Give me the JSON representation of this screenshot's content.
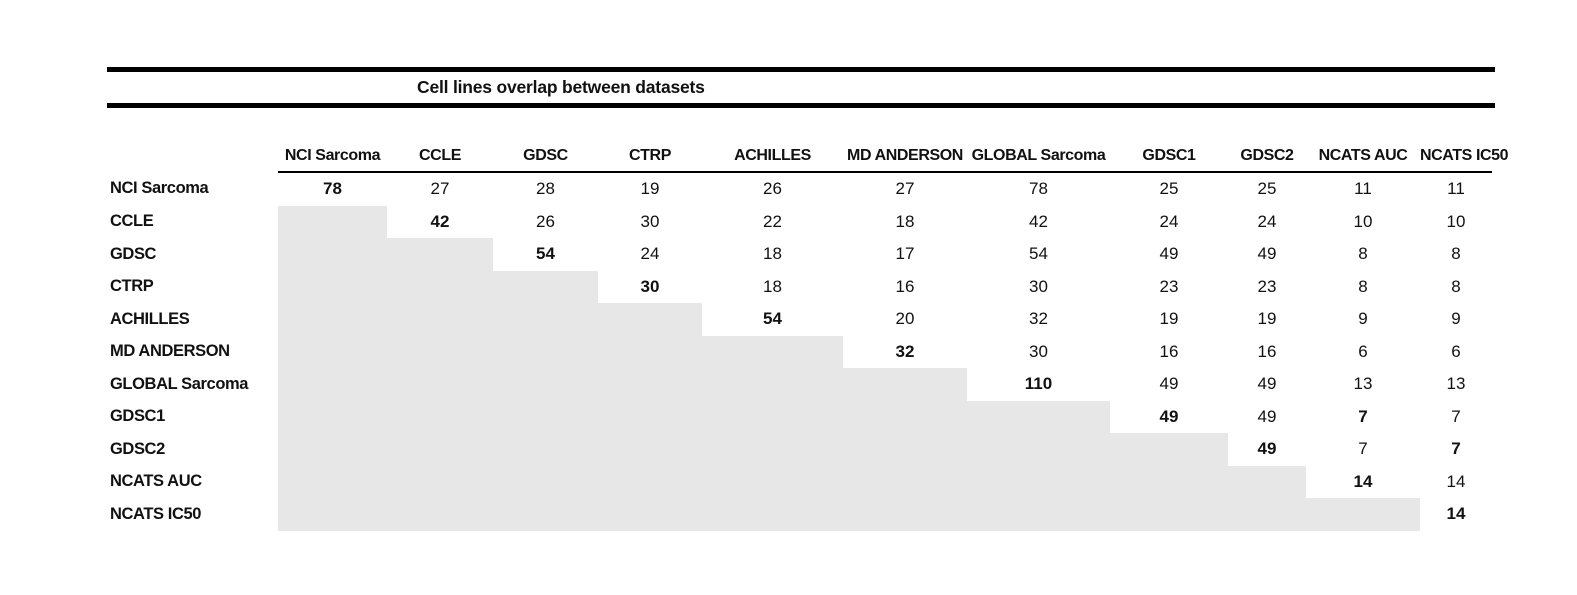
{
  "figure": {
    "title": "Cell lines overlap between datasets"
  },
  "colors": {
    "shaded_cell": "#e7e7e7",
    "rule": "#000000",
    "text": "#111111",
    "background": "#ffffff"
  },
  "table": {
    "corner_label": "",
    "columns": [
      "NCI Sarcoma",
      "CCLE",
      "GDSC",
      "CTRP",
      "ACHILLES",
      "MD ANDERSON",
      "GLOBAL Sarcoma",
      "GDSC1",
      "GDSC2",
      "NCATS AUC",
      "NCATS IC50"
    ],
    "rows": [
      {
        "label": "NCI Sarcoma",
        "cells": [
          {
            "v": "78",
            "b": true
          },
          {
            "v": "27"
          },
          {
            "v": "28"
          },
          {
            "v": "19"
          },
          {
            "v": "26"
          },
          {
            "v": "27"
          },
          {
            "v": "78"
          },
          {
            "v": "25"
          },
          {
            "v": "25"
          },
          {
            "v": "11"
          },
          {
            "v": "11"
          }
        ]
      },
      {
        "label": "CCLE",
        "cells": [
          null,
          {
            "v": "42",
            "b": true
          },
          {
            "v": "26"
          },
          {
            "v": "30"
          },
          {
            "v": "22"
          },
          {
            "v": "18"
          },
          {
            "v": "42"
          },
          {
            "v": "24"
          },
          {
            "v": "24"
          },
          {
            "v": "10"
          },
          {
            "v": "10"
          }
        ]
      },
      {
        "label": "GDSC",
        "cells": [
          null,
          null,
          {
            "v": "54",
            "b": true
          },
          {
            "v": "24"
          },
          {
            "v": "18"
          },
          {
            "v": "17"
          },
          {
            "v": "54"
          },
          {
            "v": "49"
          },
          {
            "v": "49"
          },
          {
            "v": "8"
          },
          {
            "v": "8"
          }
        ]
      },
      {
        "label": "CTRP",
        "cells": [
          null,
          null,
          null,
          {
            "v": "30",
            "b": true
          },
          {
            "v": "18"
          },
          {
            "v": "16"
          },
          {
            "v": "30"
          },
          {
            "v": "23"
          },
          {
            "v": "23"
          },
          {
            "v": "8"
          },
          {
            "v": "8"
          }
        ]
      },
      {
        "label": "ACHILLES",
        "cells": [
          null,
          null,
          null,
          null,
          {
            "v": "54",
            "b": true
          },
          {
            "v": "20"
          },
          {
            "v": "32"
          },
          {
            "v": "19"
          },
          {
            "v": "19"
          },
          {
            "v": "9"
          },
          {
            "v": "9"
          }
        ]
      },
      {
        "label": "MD ANDERSON",
        "cells": [
          null,
          null,
          null,
          null,
          null,
          {
            "v": "32",
            "b": true
          },
          {
            "v": "30"
          },
          {
            "v": "16"
          },
          {
            "v": "16"
          },
          {
            "v": "6"
          },
          {
            "v": "6"
          }
        ]
      },
      {
        "label": "GLOBAL Sarcoma",
        "cells": [
          null,
          null,
          null,
          null,
          null,
          null,
          {
            "v": "110",
            "b": true
          },
          {
            "v": "49"
          },
          {
            "v": "49"
          },
          {
            "v": "13"
          },
          {
            "v": "13"
          }
        ]
      },
      {
        "label": "GDSC1",
        "cells": [
          null,
          null,
          null,
          null,
          null,
          null,
          null,
          {
            "v": "49",
            "b": true
          },
          {
            "v": "49"
          },
          {
            "v": "7",
            "b": true
          },
          {
            "v": "7"
          }
        ]
      },
      {
        "label": "GDSC2",
        "cells": [
          null,
          null,
          null,
          null,
          null,
          null,
          null,
          null,
          {
            "v": "49",
            "b": true
          },
          {
            "v": "7"
          },
          {
            "v": "7",
            "b": true
          }
        ]
      },
      {
        "label": "NCATS AUC",
        "cells": [
          null,
          null,
          null,
          null,
          null,
          null,
          null,
          null,
          null,
          {
            "v": "14",
            "b": true
          },
          {
            "v": "14"
          }
        ]
      },
      {
        "label": "NCATS IC50",
        "cells": [
          null,
          null,
          null,
          null,
          null,
          null,
          null,
          null,
          null,
          null,
          {
            "v": "14",
            "b": true
          }
        ]
      }
    ]
  },
  "chart_data": {
    "type": "table",
    "title": "Cell lines overlap between datasets",
    "description": "Upper-triangular symmetric overlap matrix; lower triangle is shaded gray (no values). Diagonal values (dataset size) are bold; off-diagonal bold cells: GDSC1 x NCATS AUC = 7 and GDSC2 x NCATS IC50 = 7.",
    "categories": [
      "NCI Sarcoma",
      "CCLE",
      "GDSC",
      "CTRP",
      "ACHILLES",
      "MD ANDERSON",
      "GLOBAL Sarcoma",
      "GDSC1",
      "GDSC2",
      "NCATS AUC",
      "NCATS IC50"
    ],
    "matrix": [
      [
        78,
        27,
        28,
        19,
        26,
        27,
        78,
        25,
        25,
        11,
        11
      ],
      [
        null,
        42,
        26,
        30,
        22,
        18,
        42,
        24,
        24,
        10,
        10
      ],
      [
        null,
        null,
        54,
        24,
        18,
        17,
        54,
        49,
        49,
        8,
        8
      ],
      [
        null,
        null,
        null,
        30,
        18,
        16,
        30,
        23,
        23,
        8,
        8
      ],
      [
        null,
        null,
        null,
        null,
        54,
        20,
        32,
        19,
        19,
        9,
        9
      ],
      [
        null,
        null,
        null,
        null,
        null,
        32,
        30,
        16,
        16,
        6,
        6
      ],
      [
        null,
        null,
        null,
        null,
        null,
        null,
        110,
        49,
        49,
        13,
        13
      ],
      [
        null,
        null,
        null,
        null,
        null,
        null,
        null,
        49,
        49,
        7,
        7
      ],
      [
        null,
        null,
        null,
        null,
        null,
        null,
        null,
        null,
        49,
        7,
        7
      ],
      [
        null,
        null,
        null,
        null,
        null,
        null,
        null,
        null,
        null,
        14,
        14
      ],
      [
        null,
        null,
        null,
        null,
        null,
        null,
        null,
        null,
        null,
        null,
        14
      ]
    ],
    "layout": {
      "diagonal_bold": true,
      "lower_triangle": "shaded #e7e7e7",
      "grid": false
    }
  }
}
